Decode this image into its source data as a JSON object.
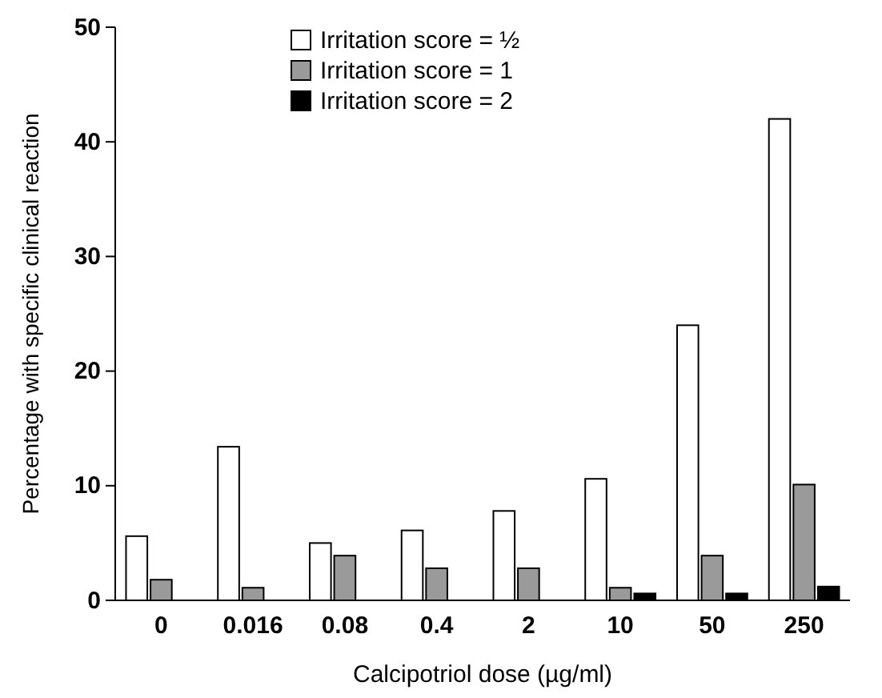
{
  "chart_data": {
    "type": "bar",
    "xlabel": "Calcipotriol dose (µg/ml)",
    "ylabel": "Percentage with specific clinical reaction",
    "categories": [
      "0",
      "0.016",
      "0.08",
      "0.4",
      "2",
      "10",
      "50",
      "250"
    ],
    "series": [
      {
        "name": "Irritation score = ½",
        "color": "#ffffff",
        "values": [
          5.6,
          13.4,
          5.0,
          6.1,
          7.8,
          10.6,
          24.0,
          42.0
        ]
      },
      {
        "name": "Irritation score = 1",
        "color": "#9a9a9a",
        "values": [
          1.8,
          1.1,
          3.9,
          2.8,
          2.8,
          1.1,
          3.9,
          10.1
        ]
      },
      {
        "name": "Irritation score = 2",
        "color": "#000000",
        "values": [
          0,
          0,
          0,
          0,
          0,
          0.6,
          0.6,
          1.2
        ]
      }
    ],
    "ylim": [
      0,
      50
    ],
    "yticks": [
      0,
      10,
      20,
      30,
      40,
      50
    ],
    "grid": false,
    "legend": "top left"
  }
}
